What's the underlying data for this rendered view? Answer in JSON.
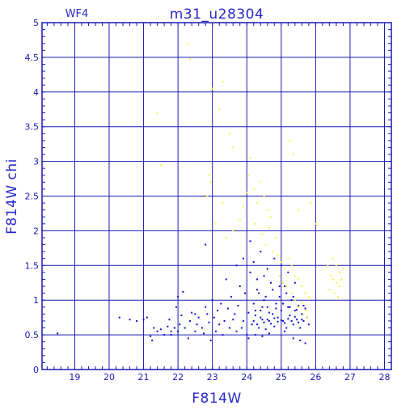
{
  "chart_data": {
    "type": "scatter",
    "title": "m31_u28304",
    "subtitle": "WF4",
    "xlabel": "F814W",
    "ylabel": "F814W  chi",
    "xlim": [
      18.05,
      28.2
    ],
    "ylim": [
      0,
      5
    ],
    "x_ticks": [
      19,
      20,
      21,
      22,
      23,
      24,
      25,
      26,
      27,
      28
    ],
    "y_ticks": [
      0,
      0.5,
      1,
      1.5,
      2,
      2.5,
      3,
      3.5,
      4,
      4.5,
      5
    ],
    "y_tick_labels": [
      "0",
      "0.5",
      "1",
      "1.5",
      "2",
      "2.5",
      "3",
      "3.5",
      "4",
      "4.5",
      "5"
    ],
    "grid": true,
    "colors": {
      "grid": "#1a1ab4",
      "frame": "#1a1ab4",
      "blue_points": "#1010d0",
      "yellow_points": "#f5f542",
      "text": "#2a2ac8"
    },
    "series": [
      {
        "color": "#1010d0",
        "points": [
          [
            18.5,
            0.52
          ],
          [
            20.3,
            0.75
          ],
          [
            20.6,
            0.72
          ],
          [
            20.8,
            0.7
          ],
          [
            21.0,
            0.72
          ],
          [
            21.1,
            0.75
          ],
          [
            21.2,
            0.48
          ],
          [
            21.25,
            0.42
          ],
          [
            21.3,
            0.6
          ],
          [
            21.4,
            0.55
          ],
          [
            21.5,
            0.58
          ],
          [
            21.6,
            0.5
          ],
          [
            21.7,
            0.62
          ],
          [
            21.75,
            0.72
          ],
          [
            21.8,
            0.55
          ],
          [
            21.9,
            0.6
          ],
          [
            21.95,
            0.9
          ],
          [
            22.0,
            1.05
          ],
          [
            22.05,
            0.65
          ],
          [
            22.1,
            0.78
          ],
          [
            22.15,
            1.12
          ],
          [
            22.2,
            0.6
          ],
          [
            22.3,
            0.45
          ],
          [
            22.35,
            0.7
          ],
          [
            22.4,
            0.82
          ],
          [
            22.5,
            0.55
          ],
          [
            22.55,
            0.65
          ],
          [
            22.6,
            0.75
          ],
          [
            22.7,
            0.6
          ],
          [
            22.75,
            0.52
          ],
          [
            22.8,
            0.9
          ],
          [
            22.85,
            0.8
          ],
          [
            22.9,
            0.68
          ],
          [
            22.95,
            0.42
          ],
          [
            23.0,
            1.0
          ],
          [
            23.05,
            0.75
          ],
          [
            23.1,
            0.55
          ],
          [
            23.15,
            0.85
          ],
          [
            23.2,
            0.65
          ],
          [
            23.25,
            0.95
          ],
          [
            23.3,
            0.5
          ],
          [
            23.35,
            0.7
          ],
          [
            23.4,
            1.3
          ],
          [
            23.45,
            0.88
          ],
          [
            23.5,
            0.6
          ],
          [
            23.55,
            1.05
          ],
          [
            23.6,
            0.72
          ],
          [
            23.65,
            0.8
          ],
          [
            23.7,
            0.55
          ],
          [
            23.75,
            0.92
          ],
          [
            23.8,
            1.2
          ],
          [
            23.85,
            0.6
          ],
          [
            23.9,
            0.7
          ],
          [
            23.95,
            1.1
          ],
          [
            24.0,
            0.5
          ],
          [
            24.05,
            0.82
          ],
          [
            24.1,
            1.4
          ],
          [
            24.15,
            0.65
          ],
          [
            24.2,
            0.95
          ],
          [
            24.25,
            0.78
          ],
          [
            24.3,
            1.15
          ],
          [
            24.35,
            0.6
          ],
          [
            24.4,
            0.85
          ],
          [
            24.45,
            0.72
          ],
          [
            24.5,
            1.0
          ],
          [
            24.55,
            0.58
          ],
          [
            24.6,
            0.9
          ],
          [
            24.65,
            0.7
          ],
          [
            24.7,
            1.25
          ],
          [
            24.75,
            0.8
          ],
          [
            24.8,
            0.62
          ],
          [
            24.85,
            0.95
          ],
          [
            24.9,
            0.75
          ],
          [
            24.95,
            1.05
          ],
          [
            25.0,
            0.85
          ],
          [
            25.05,
            0.7
          ],
          [
            25.1,
            1.2
          ],
          [
            25.15,
            0.6
          ],
          [
            25.2,
            0.9
          ],
          [
            25.25,
            0.78
          ],
          [
            25.3,
            1.0
          ],
          [
            25.35,
            0.65
          ],
          [
            25.4,
            0.85
          ],
          [
            25.45,
            0.72
          ],
          [
            25.5,
            0.92
          ],
          [
            25.55,
            0.6
          ],
          [
            25.6,
            0.8
          ],
          [
            25.65,
            0.7
          ],
          [
            25.7,
            0.88
          ],
          [
            25.75,
            0.75
          ],
          [
            25.8,
            0.65
          ],
          [
            24.2,
            0.7
          ],
          [
            24.3,
            0.65
          ],
          [
            24.4,
            0.75
          ],
          [
            24.5,
            0.68
          ],
          [
            24.6,
            0.72
          ],
          [
            24.7,
            0.66
          ],
          [
            24.8,
            0.74
          ],
          [
            24.9,
            0.69
          ],
          [
            25.0,
            0.71
          ],
          [
            25.1,
            0.67
          ],
          [
            25.2,
            0.73
          ],
          [
            25.3,
            0.7
          ],
          [
            25.4,
            0.76
          ],
          [
            25.5,
            0.68
          ],
          [
            25.6,
            0.72
          ],
          [
            24.25,
            0.85
          ],
          [
            24.45,
            0.9
          ],
          [
            24.65,
            0.82
          ],
          [
            24.85,
            0.88
          ],
          [
            25.05,
            0.95
          ],
          [
            25.25,
            0.9
          ],
          [
            25.45,
            0.86
          ],
          [
            25.65,
            0.92
          ],
          [
            24.35,
            1.1
          ],
          [
            24.55,
            1.05
          ],
          [
            24.75,
            1.15
          ],
          [
            24.95,
            1.2
          ],
          [
            25.15,
            1.1
          ],
          [
            25.35,
            1.05
          ],
          [
            24.2,
            1.55
          ],
          [
            24.4,
            1.7
          ],
          [
            24.6,
            1.45
          ],
          [
            24.8,
            1.6
          ],
          [
            25.0,
            1.5
          ],
          [
            24.3,
            1.3
          ],
          [
            24.5,
            1.35
          ],
          [
            22.8,
            1.8
          ],
          [
            22.5,
            0.8
          ],
          [
            22.0,
            0.55
          ],
          [
            21.8,
            0.5
          ],
          [
            23.7,
            1.5
          ],
          [
            23.9,
            1.6
          ],
          [
            24.1,
            1.85
          ],
          [
            25.2,
            1.4
          ],
          [
            25.4,
            1.25
          ],
          [
            24.05,
            0.45
          ],
          [
            24.25,
            0.5
          ],
          [
            24.45,
            0.48
          ],
          [
            24.65,
            0.52
          ],
          [
            25.35,
            0.45
          ],
          [
            25.55,
            0.42
          ],
          [
            25.7,
            0.38
          ],
          [
            25.1,
            0.55
          ]
        ]
      },
      {
        "color": "#f5f542",
        "points": [
          [
            21.4,
            3.7
          ],
          [
            21.5,
            2.95
          ],
          [
            22.3,
            4.7
          ],
          [
            22.35,
            4.48
          ],
          [
            22.9,
            2.8
          ],
          [
            22.95,
            2.7
          ],
          [
            22.85,
            2.5
          ],
          [
            23.0,
            4.05
          ],
          [
            23.3,
            4.15
          ],
          [
            23.2,
            3.75
          ],
          [
            23.5,
            3.4
          ],
          [
            23.6,
            3.2
          ],
          [
            23.3,
            2.4
          ],
          [
            23.1,
            2.1
          ],
          [
            23.4,
            1.9
          ],
          [
            23.6,
            2.0
          ],
          [
            23.8,
            2.15
          ],
          [
            23.9,
            2.35
          ],
          [
            24.0,
            2.55
          ],
          [
            24.05,
            2.8
          ],
          [
            24.1,
            3.05
          ],
          [
            24.2,
            2.6
          ],
          [
            24.3,
            2.4
          ],
          [
            24.4,
            2.7
          ],
          [
            24.5,
            2.5
          ],
          [
            24.6,
            2.3
          ],
          [
            24.7,
            2.2
          ],
          [
            24.25,
            2.1
          ],
          [
            24.45,
            1.95
          ],
          [
            24.65,
            2.05
          ],
          [
            24.85,
            1.9
          ],
          [
            24.55,
            1.8
          ],
          [
            24.75,
            1.7
          ],
          [
            24.9,
            1.65
          ],
          [
            25.0,
            1.55
          ],
          [
            25.1,
            1.45
          ],
          [
            25.2,
            1.6
          ],
          [
            25.3,
            1.5
          ],
          [
            25.4,
            1.35
          ],
          [
            25.5,
            1.3
          ],
          [
            25.6,
            1.2
          ],
          [
            25.7,
            1.1
          ],
          [
            25.8,
            1.05
          ],
          [
            25.25,
            3.3
          ],
          [
            25.35,
            3.1
          ],
          [
            25.5,
            2.3
          ],
          [
            25.85,
            2.4
          ],
          [
            26.0,
            2.1
          ],
          [
            26.5,
            1.6
          ],
          [
            26.6,
            1.5
          ],
          [
            26.7,
            1.4
          ],
          [
            26.5,
            1.3
          ],
          [
            26.6,
            1.25
          ],
          [
            26.7,
            1.2
          ],
          [
            26.4,
            1.15
          ],
          [
            26.55,
            1.1
          ],
          [
            26.65,
            1.05
          ],
          [
            26.45,
            1.35
          ],
          [
            26.75,
            1.3
          ],
          [
            26.8,
            1.45
          ],
          [
            26.35,
            1.5
          ],
          [
            25.6,
            0.95
          ],
          [
            25.5,
            0.9
          ],
          [
            25.4,
            1.0
          ],
          [
            25.3,
            1.1
          ],
          [
            25.15,
            1.2
          ],
          [
            25.05,
            1.25
          ],
          [
            24.95,
            1.35
          ],
          [
            25.7,
            0.85
          ],
          [
            25.75,
            0.75
          ],
          [
            25.65,
            0.8
          ]
        ]
      }
    ]
  }
}
